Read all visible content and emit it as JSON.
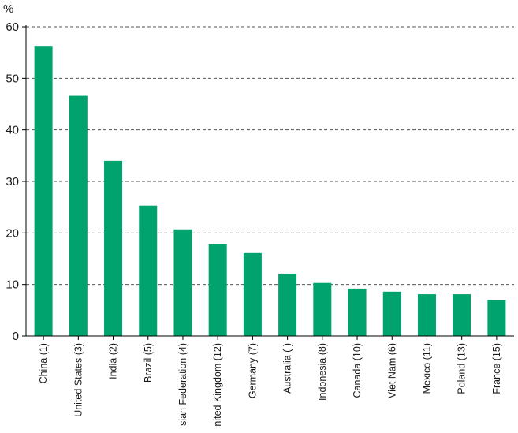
{
  "chart_data": {
    "type": "bar",
    "y_unit_label": "%",
    "categories": [
      "China (1)",
      "United States (3)",
      "India (2)",
      "Brazil (5)",
      "sian Federation (4)",
      "nited Kingdom (12)",
      "Germany (7)",
      "Australia ( )",
      "Indonesia (8)",
      "Canada (10)",
      "Viet Nam (6)",
      "Mexico (11)",
      "Poland (13)",
      "France (15)"
    ],
    "values": [
      56.3,
      46.6,
      34.0,
      25.3,
      20.7,
      17.8,
      16.1,
      12.1,
      10.3,
      9.2,
      8.6,
      8.1,
      8.1,
      7.0
    ],
    "ylim": [
      0,
      60
    ],
    "yticks": [
      0,
      10,
      20,
      30,
      40,
      50,
      60
    ],
    "grid": "dashed horizontal",
    "bar_color": "#00a36e",
    "grid_color": "#555555",
    "axis_color": "#000000"
  }
}
